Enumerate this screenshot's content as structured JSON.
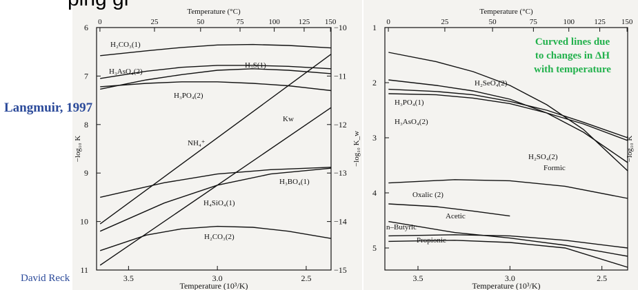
{
  "slide": {
    "source_label": "Langmuir, 1997",
    "footer": "David Reck",
    "title_fragment": "ping gr"
  },
  "colors": {
    "source": "#2b4a9a",
    "note": "#22b14c",
    "ink": "#111111"
  },
  "chart_data": [
    {
      "type": "line",
      "xlabel": "Temperature (10³/K)",
      "x2label": "Temperature (°C)",
      "ylabel": "−log₁₀ K",
      "y2label": "−log₁₀ K_w",
      "x_ticks": [
        "3.5",
        "3.0",
        "2.5"
      ],
      "x2_ticks": [
        "0",
        "25",
        "50",
        "75",
        "100",
        "125",
        "150"
      ],
      "y_ticks": [
        "6",
        "7",
        "8",
        "9",
        "10",
        "11"
      ],
      "y2_ticks": [
        "−10",
        "−11",
        "−12",
        "−13",
        "−14",
        "−15"
      ],
      "xlim": [
        3.68,
        2.36
      ],
      "ylim": [
        6,
        11
      ],
      "grid": false,
      "series": [
        {
          "name": "H₂CO₃(1)",
          "label": "H₂CO₃(1)",
          "x": [
            3.66,
            3.4,
            3.2,
            3.0,
            2.8,
            2.6,
            2.36
          ],
          "y": [
            6.58,
            6.48,
            6.41,
            6.36,
            6.35,
            6.37,
            6.42
          ]
        },
        {
          "name": "H₂S(1)",
          "label": "H₂S(1)",
          "x": [
            3.66,
            3.4,
            3.2,
            3.0,
            2.8,
            2.6,
            2.36
          ],
          "y": [
            7.27,
            7.08,
            6.97,
            6.88,
            6.85,
            6.88,
            6.95
          ]
        },
        {
          "name": "H₃AsO₄(2)",
          "label": "H₃AsO₄(2)",
          "x": [
            3.66,
            3.4,
            3.2,
            3.0,
            2.8,
            2.6,
            2.36
          ],
          "y": [
            7.05,
            6.9,
            6.82,
            6.78,
            6.78,
            6.8,
            6.85
          ]
        },
        {
          "name": "H₃PO₄(2)",
          "label": "H₃PO₄(2)",
          "x": [
            3.66,
            3.4,
            3.2,
            3.0,
            2.8,
            2.6,
            2.36
          ],
          "y": [
            7.22,
            7.15,
            7.12,
            7.12,
            7.15,
            7.2,
            7.3
          ]
        },
        {
          "name": "Kw",
          "label": "Kw",
          "x": [
            3.66,
            2.36
          ],
          "y": [
            10.05,
            6.55
          ]
        },
        {
          "name": "NH₄⁺",
          "label": "NH₄⁺",
          "x": [
            3.66,
            2.36
          ],
          "y": [
            10.9,
            7.65
          ]
        },
        {
          "name": "H₃BO₄(1)",
          "label": "H₃BO₄(1)",
          "x": [
            3.66,
            3.3,
            3.0,
            2.7,
            2.36
          ],
          "y": [
            9.5,
            9.2,
            9.02,
            8.93,
            8.88
          ]
        },
        {
          "name": "H₄SiO₄(1)",
          "label": "H₄SiO₄(1)",
          "x": [
            3.66,
            3.3,
            3.0,
            2.7,
            2.36
          ],
          "y": [
            10.2,
            9.62,
            9.25,
            9.02,
            8.9
          ]
        },
        {
          "name": "H₂CO₃(2)",
          "label": "H₂CO₃(2)",
          "x": [
            3.66,
            3.4,
            3.2,
            3.0,
            2.8,
            2.6,
            2.36
          ],
          "y": [
            10.6,
            10.28,
            10.15,
            10.1,
            10.12,
            10.2,
            10.35
          ]
        }
      ]
    },
    {
      "type": "line",
      "xlabel": "Temperature (10³/K)",
      "x2label": "Temperature (°C)",
      "ylabel": "−log₁₀ K",
      "x_ticks": [
        "3.5",
        "3.0",
        "2.5"
      ],
      "x2_ticks": [
        "0",
        "25",
        "50",
        "75",
        "100",
        "125",
        "150"
      ],
      "y_ticks": [
        "1",
        "2",
        "3",
        "4",
        "5"
      ],
      "xlim": [
        3.68,
        2.36
      ],
      "ylim": [
        1,
        5.4
      ],
      "grid": false,
      "annotation": [
        "Curved lines due",
        "to changes in ΔH",
        "with temperature"
      ],
      "series": [
        {
          "name": "H₂SeO₄(2)",
          "label": "H₂SeO₄(2)",
          "x": [
            3.66,
            3.4,
            3.2,
            3.0,
            2.8,
            2.6,
            2.36
          ],
          "y": [
            1.45,
            1.62,
            1.8,
            2.05,
            2.4,
            2.85,
            3.6
          ]
        },
        {
          "name": "H₃PO₄(1)",
          "label": "H₃PO₄(1)",
          "x": [
            3.66,
            3.4,
            3.2,
            3.0,
            2.8,
            2.6,
            2.36
          ],
          "y": [
            1.95,
            2.05,
            2.15,
            2.3,
            2.55,
            2.9,
            3.45
          ]
        },
        {
          "name": "H₃AsO₄(2)",
          "label": "H₃AsO₄(2)",
          "x": [
            3.66,
            3.4,
            3.2,
            3.0,
            2.8,
            2.6,
            2.36
          ],
          "y": [
            2.2,
            2.22,
            2.28,
            2.38,
            2.55,
            2.75,
            3.05
          ]
        },
        {
          "name": "H₂SO₄(2)",
          "label": "H₂SO₄(2)",
          "x": [
            3.66,
            3.4,
            3.2,
            3.0,
            2.8,
            2.6,
            2.36
          ],
          "y": [
            2.12,
            2.16,
            2.22,
            2.34,
            2.5,
            2.72,
            3.0
          ]
        },
        {
          "name": "Formic",
          "label": "Formic",
          "x": [
            3.66,
            3.3,
            3.0,
            2.7,
            2.36
          ],
          "y": [
            3.82,
            3.76,
            3.78,
            3.88,
            4.1
          ]
        },
        {
          "name": "Oxalic (2)",
          "label": "Oxalic (2)",
          "x": [
            3.66,
            3.4,
            3.2,
            3.0
          ],
          "y": [
            4.2,
            4.25,
            4.33,
            4.42
          ]
        },
        {
          "name": "Acetic",
          "label": "Acetic",
          "x": [
            3.66,
            3.3,
            3.0,
            2.7,
            2.36
          ],
          "y": [
            4.78,
            4.76,
            4.78,
            4.86,
            5.0
          ]
        },
        {
          "name": "n-Butyric",
          "label": "n–Butyric",
          "x": [
            3.66,
            3.3,
            3.0,
            2.7,
            2.36
          ],
          "y": [
            4.52,
            4.72,
            4.82,
            4.95,
            5.15
          ]
        },
        {
          "name": "Propionic",
          "label": "Propionic",
          "x": [
            3.66,
            3.3,
            3.0,
            2.7,
            2.36
          ],
          "y": [
            4.88,
            4.86,
            4.9,
            5.0,
            5.35
          ]
        }
      ]
    }
  ]
}
